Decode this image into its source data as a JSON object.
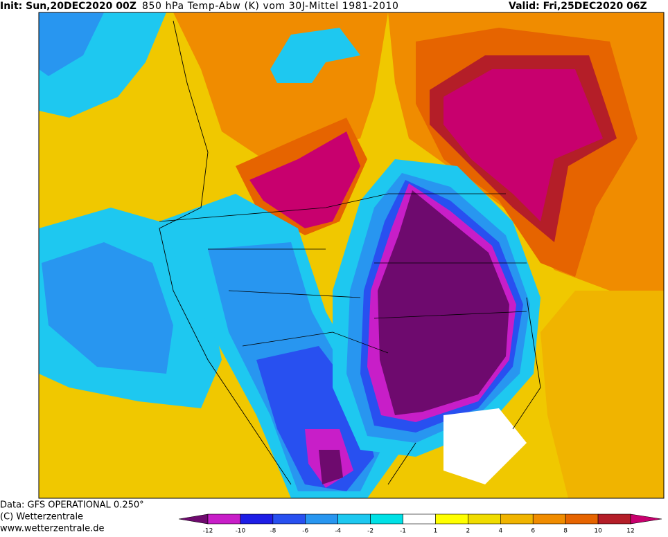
{
  "header": {
    "init": "Init: Sun,20DEC2020 00Z",
    "title": "850 hPa Temp-Abw (K) vom 30J-Mittel 1981-2010",
    "valid": "Valid: Fri,25DEC2020 06Z"
  },
  "footer": {
    "lines": [
      "Data: GFS OPERATIONAL 0.250°",
      "(C) Wetterzentrale",
      "www.wetterzentrale.de"
    ]
  },
  "colorbar": {
    "levels": [
      -12,
      -10,
      -8,
      -6,
      -4,
      -2,
      -1,
      1,
      2,
      4,
      6,
      8,
      10,
      12
    ],
    "colors": [
      "#6e0a6e",
      "#c81ec8",
      "#1e1ee6",
      "#2850f0",
      "#2896f0",
      "#1ec8f0",
      "#00e1e6",
      "#ffffff",
      "#ffff00",
      "#f0dc00",
      "#f0b400",
      "#f08c00",
      "#e66400",
      "#b41e28",
      "#c8006e"
    ]
  }
}
